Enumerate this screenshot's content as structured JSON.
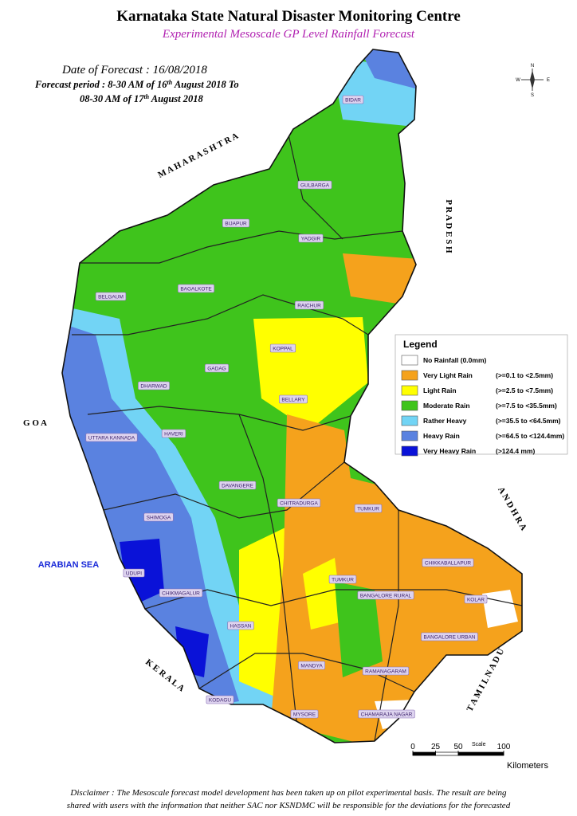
{
  "header": {
    "title": "Karnataka State Natural Disaster Monitoring Centre",
    "subtitle": "Experimental Mesoscale GP Level Rainfall Forecast"
  },
  "forecast": {
    "date": "Date of Forecast : 16/08/2018",
    "period_line1": [
      "Forecast period : 8-30 AM of 16",
      "th",
      " August 2018 To"
    ],
    "period_line2": [
      "08-30 AM of 17",
      "th",
      " August 2018"
    ]
  },
  "legend": {
    "title": "Legend",
    "items": [
      {
        "label": "No Rainfall (0.0mm)",
        "color": "#ffffff"
      },
      {
        "label": "Very Light Rain",
        "range": "(>=0.1 to <2.5mm)",
        "color": "#f5a21c"
      },
      {
        "label": "Light Rain",
        "range": "(>=2.5 to <7.5mm)",
        "color": "#ffff00"
      },
      {
        "label": "Moderate Rain",
        "range": "(>=7.5 to <35.5mm)",
        "color": "#3fc41c"
      },
      {
        "label": "Rather Heavy",
        "range": "(>=35.5 to <64.5mm)",
        "color": "#72d4f5"
      },
      {
        "label": "Heavy Rain",
        "range": "(>=64.5 to <124.4mm)",
        "color": "#5a82e0"
      },
      {
        "label": "Very Heavy Rain",
        "range": "(>124.4 mm)",
        "color": "#0a12d8"
      }
    ]
  },
  "neighbors": {
    "maharashtra": "M A H A R A S H T R A",
    "goa": "G O A",
    "sea": "ARABIAN SEA",
    "kerala": "K E R A L A",
    "tamil_nadu": "T A M I L   N A D U",
    "andhra": "A N D H R A",
    "pradesh": "P R A D E S H"
  },
  "districts": [
    "BIDAR",
    "GULBARGA",
    "BIJAPUR",
    "YADGIR",
    "BAGALKOTE",
    "BELGAUM",
    "RAICHUR",
    "KOPPAL",
    "GADAG",
    "DHARWAD",
    "BELLARY",
    "HAVERI",
    "UTTARA KANNADA",
    "DAVANGERE",
    "CHITRADURGA",
    "TUMKUR",
    "SHIMOGA",
    "CHIKKABALLAPUR",
    "UDUPI",
    "CHIKMAGALUR",
    "TUMKUR",
    "BANGALORE RURAL",
    "KOLAR",
    "HASSAN",
    "BANGALORE URBAN",
    "MANDYA",
    "RAMANAGARAM",
    "KODAGU",
    "MYSORE",
    "CHAMARAJA NAGAR"
  ],
  "compass": {
    "n": "N",
    "s": "S",
    "e": "E",
    "w": "W"
  },
  "scale": {
    "title": "Scale",
    "ticks": [
      0,
      25,
      50,
      100
    ],
    "unit": "Kilometers"
  },
  "disclaimer": [
    "Disclaimer : The Mesoscale forecast model development has been taken up on pilot experimental basis. The result are being",
    "shared with users with the information that neither SAC nor KSNDMC will be responsible  for the deviations for the forecasted"
  ]
}
